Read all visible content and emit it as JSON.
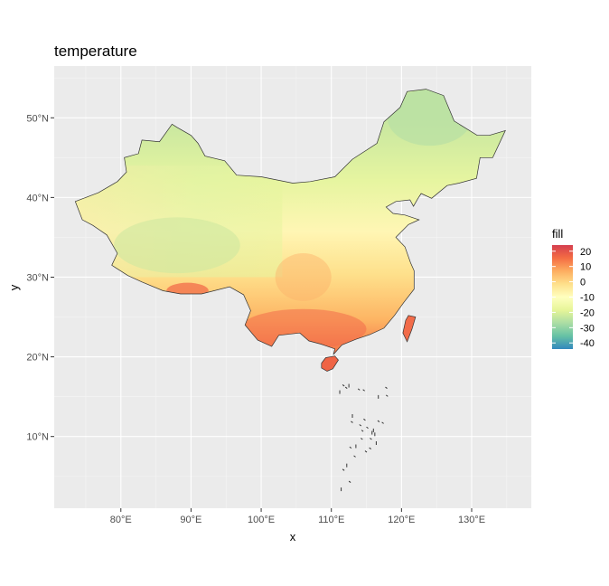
{
  "chart_data": {
    "type": "heatmap",
    "title": "temperature",
    "xlabel": "x",
    "ylabel": "y",
    "xlim": [
      70.5,
      138.5
    ],
    "ylim": [
      1,
      56.5
    ],
    "x_ticks": [
      {
        "value": 80,
        "label": "80°E"
      },
      {
        "value": 90,
        "label": "90°E"
      },
      {
        "value": 100,
        "label": "100°E"
      },
      {
        "value": 110,
        "label": "110°E"
      },
      {
        "value": 120,
        "label": "120°E"
      },
      {
        "value": 130,
        "label": "130°E"
      }
    ],
    "y_ticks": [
      {
        "value": 10,
        "label": "10°N"
      },
      {
        "value": 20,
        "label": "20°N"
      },
      {
        "value": 30,
        "label": "30°N"
      },
      {
        "value": 40,
        "label": "40°N"
      },
      {
        "value": 50,
        "label": "50°N"
      }
    ],
    "grid": true,
    "legend": {
      "title": "fill",
      "position": "right",
      "range": [
        -44,
        24
      ],
      "ticks": [
        20,
        10,
        0,
        -10,
        -20,
        -30,
        -40
      ],
      "colors": [
        "#3288bd",
        "#66c2a5",
        "#abdda4",
        "#e6f598",
        "#ffffbf",
        "#fee08b",
        "#fdae61",
        "#f46d43",
        "#d53e4f"
      ]
    },
    "colors": {
      "panel": "#ebebeb",
      "grid_major": "#ffffff",
      "grid_minor": "#f5f5f5",
      "outline": "#333333"
    },
    "outline": [
      [
        73.5,
        39.5
      ],
      [
        74.5,
        37.2
      ],
      [
        76.0,
        36.5
      ],
      [
        78.0,
        35.3
      ],
      [
        79.5,
        33.0
      ],
      [
        78.7,
        31.5
      ],
      [
        81.0,
        30.2
      ],
      [
        83.0,
        29.4
      ],
      [
        86.0,
        28.3
      ],
      [
        88.5,
        27.9
      ],
      [
        91.5,
        27.9
      ],
      [
        95.5,
        28.8
      ],
      [
        97.5,
        27.8
      ],
      [
        98.5,
        25.8
      ],
      [
        97.7,
        24.0
      ],
      [
        99.5,
        22.1
      ],
      [
        101.5,
        21.3
      ],
      [
        102.5,
        22.7
      ],
      [
        105.5,
        23.0
      ],
      [
        106.8,
        22.0
      ],
      [
        108.5,
        21.6
      ],
      [
        110.5,
        21.0
      ],
      [
        110.3,
        20.3
      ],
      [
        111.5,
        21.5
      ],
      [
        113.5,
        22.2
      ],
      [
        115.5,
        22.8
      ],
      [
        117.5,
        23.6
      ],
      [
        119.0,
        25.2
      ],
      [
        120.3,
        26.8
      ],
      [
        121.8,
        28.5
      ],
      [
        121.8,
        30.8
      ],
      [
        121.3,
        31.8
      ],
      [
        120.5,
        33.8
      ],
      [
        119.2,
        35.0
      ],
      [
        121.0,
        36.6
      ],
      [
        122.5,
        37.2
      ],
      [
        120.5,
        37.8
      ],
      [
        118.8,
        38.0
      ],
      [
        117.8,
        38.8
      ],
      [
        119.2,
        39.5
      ],
      [
        121.2,
        39.7
      ],
      [
        121.7,
        38.9
      ],
      [
        122.3,
        39.8
      ],
      [
        122.8,
        40.5
      ],
      [
        124.3,
        39.9
      ],
      [
        126.5,
        41.5
      ],
      [
        128.2,
        41.8
      ],
      [
        130.7,
        42.4
      ],
      [
        131.2,
        45.0
      ],
      [
        133.0,
        45.0
      ],
      [
        134.8,
        48.4
      ],
      [
        132.5,
        47.8
      ],
      [
        130.8,
        47.8
      ],
      [
        127.5,
        49.6
      ],
      [
        126.0,
        52.8
      ],
      [
        123.5,
        53.6
      ],
      [
        120.8,
        53.3
      ],
      [
        119.8,
        51.3
      ],
      [
        117.5,
        49.5
      ],
      [
        116.5,
        46.8
      ],
      [
        113.0,
        44.8
      ],
      [
        110.5,
        42.6
      ],
      [
        107.0,
        42.0
      ],
      [
        104.5,
        41.8
      ],
      [
        100.0,
        42.6
      ],
      [
        96.5,
        42.8
      ],
      [
        94.8,
        44.6
      ],
      [
        92.0,
        45.2
      ],
      [
        91.0,
        46.8
      ],
      [
        90.0,
        47.8
      ],
      [
        88.0,
        48.8
      ],
      [
        87.3,
        49.2
      ],
      [
        85.5,
        47.0
      ],
      [
        83.0,
        47.2
      ],
      [
        82.5,
        45.5
      ],
      [
        80.5,
        45.0
      ],
      [
        80.8,
        43.2
      ],
      [
        79.5,
        42.0
      ],
      [
        76.8,
        40.6
      ],
      [
        73.5,
        39.5
      ]
    ],
    "taiwan": [
      [
        121.0,
        25.2
      ],
      [
        122.0,
        25.0
      ],
      [
        121.5,
        23.5
      ],
      [
        120.8,
        21.9
      ],
      [
        120.2,
        23.0
      ],
      [
        120.6,
        24.6
      ],
      [
        121.0,
        25.2
      ]
    ],
    "hainan": [
      [
        108.6,
        19.2
      ],
      [
        109.2,
        19.9
      ],
      [
        110.5,
        20.1
      ],
      [
        111.0,
        19.6
      ],
      [
        110.2,
        18.5
      ],
      [
        109.4,
        18.2
      ],
      [
        108.6,
        18.6
      ],
      [
        108.6,
        19.2
      ]
    ],
    "islands": [
      [
        112.5,
        16.6
      ],
      [
        112.0,
        16.2
      ],
      [
        111.6,
        16.5
      ],
      [
        111.2,
        15.8
      ],
      [
        113.8,
        16.0
      ],
      [
        114.5,
        15.9
      ],
      [
        116.7,
        15.2
      ],
      [
        117.8,
        15.2
      ],
      [
        117.7,
        16.2
      ],
      [
        115.8,
        10.7
      ],
      [
        114.3,
        10.8
      ],
      [
        112.6,
        8.7
      ],
      [
        113.5,
        9.0
      ],
      [
        114.2,
        9.8
      ],
      [
        115.5,
        9.8
      ],
      [
        116.2,
        10.5
      ],
      [
        114.8,
        8.2
      ],
      [
        113.2,
        7.6
      ],
      [
        112.2,
        6.6
      ],
      [
        111.6,
        5.9
      ],
      [
        112.5,
        4.4
      ],
      [
        111.4,
        3.6
      ],
      [
        114.0,
        11.5
      ],
      [
        115.0,
        11.2
      ],
      [
        116.0,
        11.0
      ],
      [
        116.6,
        12.0
      ],
      [
        117.2,
        11.8
      ],
      [
        113.0,
        12.8
      ],
      [
        112.8,
        11.9
      ],
      [
        115.4,
        8.6
      ],
      [
        116.4,
        9.4
      ],
      [
        114.6,
        12.2
      ]
    ]
  }
}
